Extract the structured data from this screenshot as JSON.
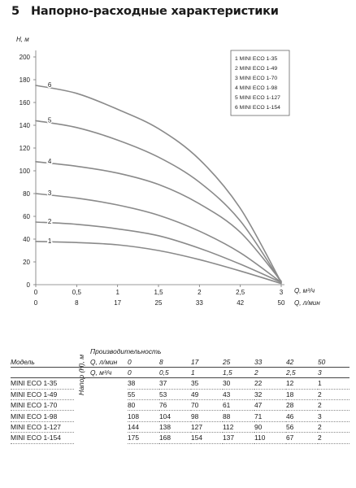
{
  "section": {
    "number": "5",
    "title": "Напорно-расходные характеристики"
  },
  "chart_data": {
    "type": "line",
    "ylabel": "H, м",
    "xlabel_primary": "Q, м³/ч",
    "xlabel_secondary": "Q, л/мин",
    "ylim": [
      0,
      200
    ],
    "xlim": [
      0,
      3
    ],
    "y_ticks": [
      "0",
      "20",
      "40",
      "60",
      "80",
      "100",
      "120",
      "140",
      "160",
      "180",
      "200"
    ],
    "x_ticks_primary": [
      "0",
      "0,5",
      "1",
      "1,5",
      "2",
      "2,5",
      "3"
    ],
    "x_ticks_secondary": [
      "0",
      "8",
      "17",
      "25",
      "33",
      "42",
      "50"
    ],
    "x_secondary_values": [
      0,
      8,
      17,
      25,
      33,
      42,
      50
    ],
    "grid": false,
    "legend_position": "top-right",
    "x": [
      0,
      0.5,
      1,
      1.5,
      2,
      2.5,
      3
    ],
    "series": [
      {
        "name": "MINI ECO 1-35",
        "label": "1",
        "legend": "1 MINI ECO 1-35",
        "values": [
          38,
          37,
          35,
          30,
          22,
          12,
          1
        ]
      },
      {
        "name": "MINI ECO 1-49",
        "label": "2",
        "legend": "2 MINI ECO 1-49",
        "values": [
          55,
          53,
          49,
          43,
          32,
          18,
          2
        ]
      },
      {
        "name": "MINI ECO 1-70",
        "label": "3",
        "legend": "3 MINI ECO 1-70",
        "values": [
          80,
          76,
          70,
          61,
          47,
          28,
          2
        ]
      },
      {
        "name": "MINI ECO 1-98",
        "label": "4",
        "legend": "4 MINI ECO 1-98",
        "values": [
          108,
          104,
          98,
          88,
          71,
          46,
          3
        ]
      },
      {
        "name": "MINI ECO 1-127",
        "label": "5",
        "legend": "5 MINI ECO 1-127",
        "values": [
          144,
          138,
          127,
          112,
          90,
          56,
          2
        ]
      },
      {
        "name": "MINI ECO 1-154",
        "label": "6",
        "legend": "6 MINI ECO 1-154",
        "values": [
          175,
          168,
          154,
          137,
          110,
          67,
          2
        ]
      }
    ]
  },
  "table": {
    "title": "Производительность",
    "model_header": "Модель",
    "flow_lmin_label": "Q, л/мин",
    "flow_m3h_label": "Q, м³/ч",
    "head_label": "Напор (H), м",
    "flow_lmin": [
      "0",
      "8",
      "17",
      "25",
      "33",
      "42",
      "50"
    ],
    "flow_m3h": [
      "0",
      "0,5",
      "1",
      "1,5",
      "2",
      "2,5",
      "3"
    ],
    "rows": [
      {
        "model": "MINI ECO 1-35",
        "values": [
          "38",
          "37",
          "35",
          "30",
          "22",
          "12",
          "1"
        ]
      },
      {
        "model": "MINI ECO 1-49",
        "values": [
          "55",
          "53",
          "49",
          "43",
          "32",
          "18",
          "2"
        ]
      },
      {
        "model": "MINI ECO 1-70",
        "values": [
          "80",
          "76",
          "70",
          "61",
          "47",
          "28",
          "2"
        ]
      },
      {
        "model": "MINI ECO 1-98",
        "values": [
          "108",
          "104",
          "98",
          "88",
          "71",
          "46",
          "3"
        ]
      },
      {
        "model": "MINI ECO 1-127",
        "values": [
          "144",
          "138",
          "127",
          "112",
          "90",
          "56",
          "2"
        ]
      },
      {
        "model": "MINI ECO 1-154",
        "values": [
          "175",
          "168",
          "154",
          "137",
          "110",
          "67",
          "2"
        ]
      }
    ]
  }
}
